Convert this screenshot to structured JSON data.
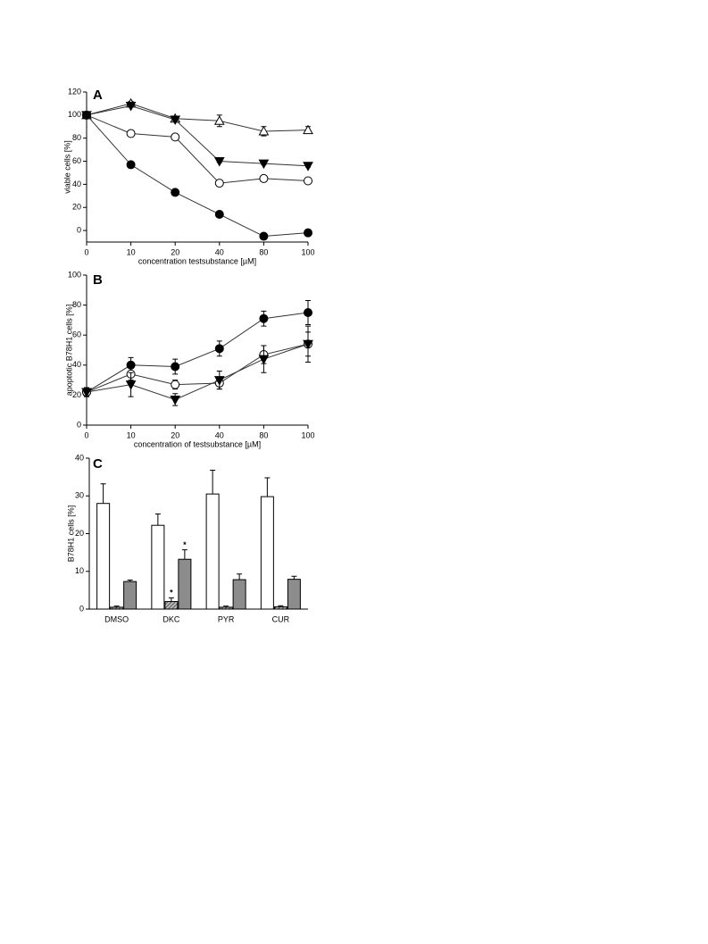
{
  "chart_data": [
    {
      "type": "line",
      "label": "A",
      "x_label": "concentration testsubstance [µM]",
      "y_label": "viable cells [%]",
      "categories": [
        "0",
        "10",
        "20",
        "40",
        "80",
        "100"
      ],
      "ylim": [
        -10,
        120
      ],
      "yticks": [
        0,
        20,
        40,
        60,
        80,
        100,
        120
      ],
      "series": [
        {
          "marker": "triangle-up",
          "filled": false,
          "color": "#000000",
          "values": [
            100,
            110,
            97,
            95,
            86,
            87
          ],
          "errors": [
            3,
            2,
            2,
            5,
            4,
            3
          ]
        },
        {
          "marker": "triangle-down",
          "filled": true,
          "color": "#000000",
          "values": [
            100,
            108,
            96,
            60,
            58,
            56
          ],
          "errors": [
            2,
            1,
            1,
            1,
            1,
            1
          ]
        },
        {
          "marker": "circle",
          "filled": false,
          "color": "#000000",
          "values": [
            100,
            84,
            81,
            41,
            45,
            43
          ],
          "errors": [
            2,
            1,
            1,
            1,
            1,
            1
          ]
        },
        {
          "marker": "circle",
          "filled": true,
          "color": "#000000",
          "values": [
            100,
            57,
            33,
            14,
            -5,
            -2
          ],
          "errors": [
            2,
            1,
            1,
            1,
            1,
            1
          ]
        }
      ]
    },
    {
      "type": "line",
      "label": "B",
      "x_label": "concentration of testsubstance [µM]",
      "y_label": "apoptotic B78H1 cells [%]",
      "categories": [
        "0",
        "10",
        "20",
        "40",
        "80",
        "100"
      ],
      "ylim": [
        0,
        100
      ],
      "yticks": [
        0,
        20,
        40,
        60,
        80,
        100
      ],
      "series": [
        {
          "marker": "circle",
          "filled": true,
          "color": "#000000",
          "values": [
            22,
            40,
            39,
            51,
            71,
            75
          ],
          "errors": [
            3,
            5,
            5,
            5,
            5,
            8
          ]
        },
        {
          "marker": "circle",
          "filled": false,
          "color": "#000000",
          "values": [
            22,
            34,
            27,
            28,
            47,
            54
          ],
          "errors": [
            2,
            4,
            3,
            4,
            6,
            8
          ]
        },
        {
          "marker": "triangle-down",
          "filled": true,
          "color": "#000000",
          "values": [
            22,
            27,
            17,
            30,
            44,
            54
          ],
          "errors": [
            3,
            8,
            4,
            6,
            9,
            12
          ]
        }
      ]
    },
    {
      "type": "bar",
      "label": "C",
      "y_label": "B78H1 cells [%]",
      "categories": [
        "DMSO",
        "DKC",
        "PYR",
        "CUR"
      ],
      "ylim": [
        0,
        40
      ],
      "yticks": [
        0,
        10,
        20,
        30,
        40
      ],
      "significance_label": "*",
      "series": [
        {
          "color": "#ffffff",
          "pattern": "none",
          "values": [
            28,
            22.2,
            30.5,
            29.8
          ],
          "errors": [
            5.2,
            3,
            6.3,
            5
          ],
          "significant": [
            false,
            false,
            false,
            false
          ]
        },
        {
          "color": "#888888",
          "pattern": "hatch",
          "values": [
            0.5,
            2,
            0.5,
            0.6
          ],
          "errors": [
            0.3,
            1,
            0.3,
            0.3
          ],
          "significant": [
            false,
            true,
            false,
            false
          ]
        },
        {
          "color": "#8c8c8c",
          "pattern": "none",
          "values": [
            7.3,
            13.2,
            7.8,
            7.9
          ],
          "errors": [
            0.4,
            2.5,
            1.5,
            0.8
          ],
          "significant": [
            false,
            true,
            false,
            false
          ]
        }
      ]
    }
  ]
}
